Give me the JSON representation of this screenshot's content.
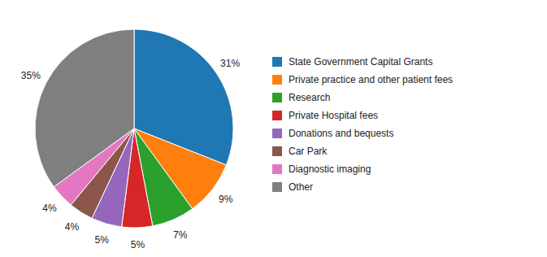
{
  "chart_data": {
    "type": "pie",
    "categories": [
      "State Government Capital Grants",
      "Private practice and other patient fees",
      "Research",
      "Private Hospital fees",
      "Donations and bequests",
      "Car Park",
      "Diagnostic imaging",
      "Other"
    ],
    "values": [
      31,
      9,
      7,
      5,
      5,
      4,
      4,
      35
    ],
    "value_labels": [
      "31%",
      "9%",
      "7%",
      "5%",
      "5%",
      "4%",
      "4%",
      "35%"
    ],
    "data_labels": true,
    "legend": "right"
  }
}
